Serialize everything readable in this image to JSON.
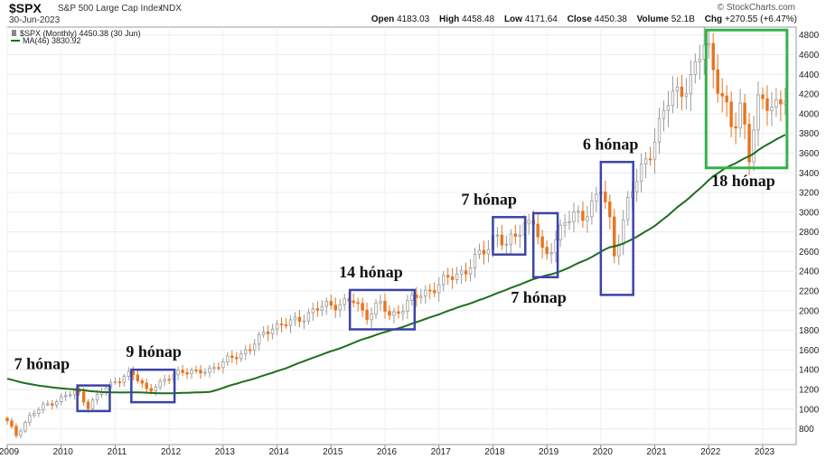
{
  "header": {
    "symbol": "$SPX",
    "name": "S&P 500 Large Cap Index",
    "exchange": "INDX",
    "date": "30-Jun-2023",
    "logo": "© StockCharts.com",
    "open_label": "Open",
    "open": "4183.03",
    "high_label": "High",
    "high": "4458.48",
    "low_label": "Low",
    "low": "4171.64",
    "close_label": "Close",
    "close": "4450.38",
    "volume_label": "Volume",
    "volume": "52.1B",
    "chg_label": "Chg",
    "chg": "+270.55 (+6.47%)"
  },
  "legend": {
    "series_label": "$SPX (Monthly) 4450.38 (30 Jun)",
    "ma_label": "MA(46) 3830.92"
  },
  "colors": {
    "up_candle": "#9a9a9a",
    "down_candle": "#e8741e",
    "ma_line": "#1e6e1e",
    "box_blue": "#3b44a8",
    "box_green": "#33b24a"
  },
  "chart_data": {
    "type": "candlestick",
    "title": "$SPX (Monthly)",
    "x_ticks": [
      "2009",
      "2010",
      "2011",
      "2012",
      "2013",
      "2014",
      "2015",
      "2016",
      "2017",
      "2018",
      "2019",
      "2020",
      "2021",
      "2022",
      "2023"
    ],
    "y_ticks": [
      800,
      1000,
      1200,
      1400,
      1600,
      1800,
      2000,
      2200,
      2400,
      2600,
      2800,
      3000,
      3200,
      3400,
      3600,
      3800,
      4000,
      4200,
      4400,
      4600,
      4800
    ],
    "ylim": [
      640,
      4880
    ],
    "xlim": [
      2009.0,
      2023.62
    ],
    "ma_period": 46,
    "ma_last": 3830.92,
    "close_anchors": [
      [
        2009.0,
        870
      ],
      [
        2009.17,
        735
      ],
      [
        2009.4,
        920
      ],
      [
        2009.67,
        1030
      ],
      [
        2010.0,
        1110
      ],
      [
        2010.3,
        1185
      ],
      [
        2010.5,
        1030
      ],
      [
        2010.75,
        1180
      ],
      [
        2011.0,
        1290
      ],
      [
        2011.3,
        1360
      ],
      [
        2011.6,
        1200
      ],
      [
        2011.85,
        1255
      ],
      [
        2012.2,
        1400
      ],
      [
        2012.5,
        1360
      ],
      [
        2012.8,
        1420
      ],
      [
        2013.0,
        1470
      ],
      [
        2013.5,
        1620
      ],
      [
        2013.9,
        1840
      ],
      [
        2014.3,
        1880
      ],
      [
        2014.7,
        2010
      ],
      [
        2015.0,
        2060
      ],
      [
        2015.4,
        2100
      ],
      [
        2015.65,
        1950
      ],
      [
        2015.9,
        2080
      ],
      [
        2016.1,
        1930
      ],
      [
        2016.4,
        2080
      ],
      [
        2016.7,
        2170
      ],
      [
        2017.0,
        2270
      ],
      [
        2017.5,
        2420
      ],
      [
        2017.95,
        2670
      ],
      [
        2018.05,
        2820
      ],
      [
        2018.25,
        2640
      ],
      [
        2018.6,
        2900
      ],
      [
        2018.75,
        2920
      ],
      [
        2018.95,
        2500
      ],
      [
        2019.3,
        2900
      ],
      [
        2019.7,
        2980
      ],
      [
        2020.0,
        3230
      ],
      [
        2020.15,
        2950
      ],
      [
        2020.25,
        2580
      ],
      [
        2020.5,
        3100
      ],
      [
        2020.9,
        3620
      ],
      [
        2021.3,
        4180
      ],
      [
        2021.7,
        4350
      ],
      [
        2021.95,
        4770
      ],
      [
        2022.15,
        4350
      ],
      [
        2022.45,
        3790
      ],
      [
        2022.6,
        4130
      ],
      [
        2022.75,
        3590
      ],
      [
        2022.9,
        4080
      ],
      [
        2023.2,
        4100
      ],
      [
        2023.42,
        4180
      ],
      [
        2023.5,
        4450
      ]
    ],
    "annotations": [
      {
        "label": "7 hónap",
        "x0": 2010.3,
        "x1": 2010.9,
        "y_lo": 980,
        "y_hi": 1240
      },
      {
        "label": "9 hónap",
        "x0": 2011.3,
        "x1": 2012.1,
        "y_lo": 1070,
        "y_hi": 1400
      },
      {
        "label": "14 hónap",
        "x0": 2015.35,
        "x1": 2016.55,
        "y_lo": 1810,
        "y_hi": 2210
      },
      {
        "label": "7 hónap",
        "x0": 2018.0,
        "x1": 2018.6,
        "y_lo": 2570,
        "y_hi": 2950
      },
      {
        "label": "7 hónap",
        "x0": 2018.75,
        "x1": 2019.2,
        "y_lo": 2340,
        "y_hi": 2990
      },
      {
        "label": "6 hónap",
        "x0": 2020.0,
        "x1": 2020.6,
        "y_lo": 2160,
        "y_hi": 3510
      },
      {
        "label": "18 hónap",
        "x0": 2021.95,
        "x1": 2023.45,
        "y_lo": 3450,
        "y_hi": 4850
      }
    ]
  }
}
